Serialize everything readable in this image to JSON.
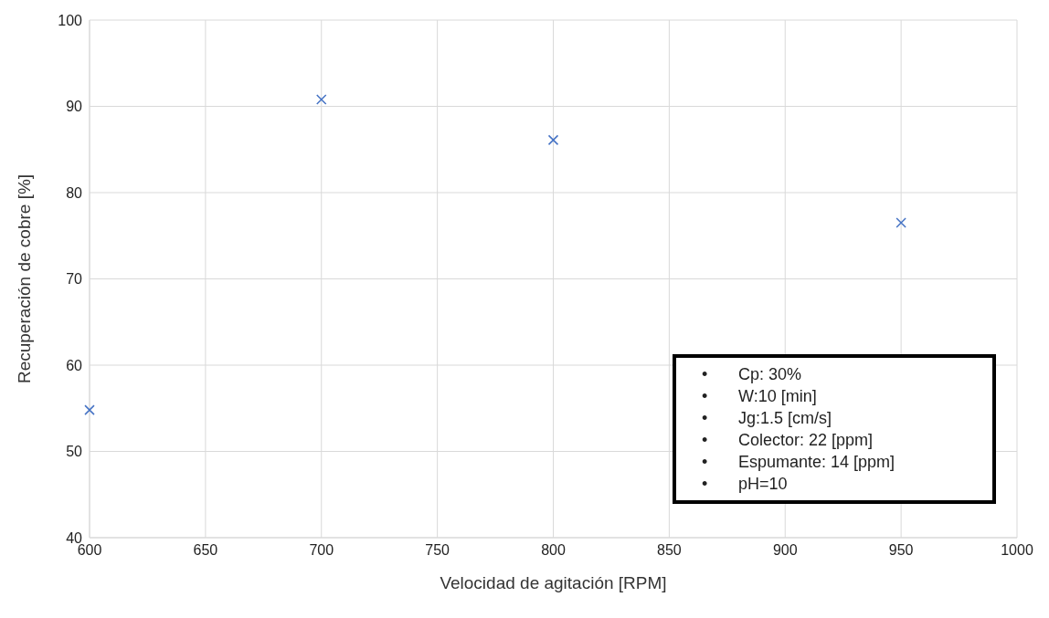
{
  "chart_data": {
    "type": "scatter",
    "xlabel": "Velocidad de agitación [RPM]",
    "ylabel": "Recuperación de cobre [%]",
    "x": [
      600,
      700,
      800,
      950
    ],
    "values": [
      54.8,
      90.8,
      86.1,
      76.5
    ],
    "color": "#4472c4",
    "marker": "cross",
    "grid": true,
    "xlim": [
      600,
      1000
    ],
    "xticks": [
      600,
      650,
      700,
      750,
      800,
      850,
      900,
      950,
      1000
    ],
    "ylim": [
      40,
      100
    ],
    "yticks": [
      40,
      50,
      60,
      70,
      80,
      90,
      100
    ],
    "annotations": [
      "•\tCp: 30%",
      "•\tW:10 [min]",
      "•\tJg:1.5 [cm/s]",
      "•\tColector: 22 [ppm]",
      "•\tEspumante: 14 [ppm]",
      "•\tpH=10"
    ]
  }
}
